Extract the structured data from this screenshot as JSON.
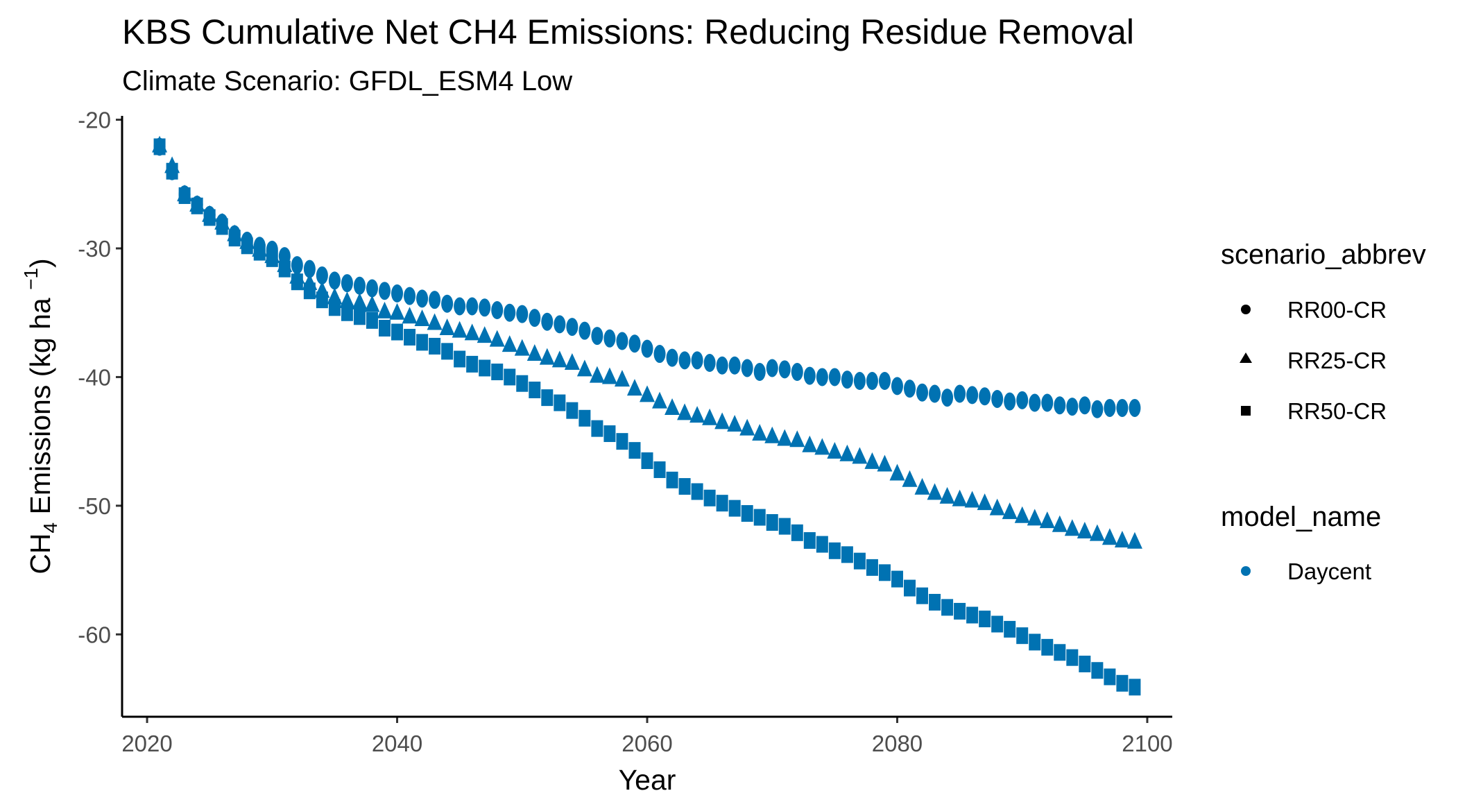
{
  "chart_data": {
    "type": "scatter",
    "title": "KBS  Cumulative Net CH4 Emissions: Reducing Residue Removal",
    "subtitle": "Climate Scenario: GFDL_ESM4 Low",
    "xlabel": "Year",
    "ylabel": {
      "prefix": "CH",
      "sub": "4",
      "middle": " Emissions (kg ha ",
      "sup": "−1",
      "suffix": ")"
    },
    "xlim": [
      2018,
      2102
    ],
    "ylim": [
      -66.4,
      -19.7
    ],
    "xticks": [
      2020,
      2040,
      2060,
      2080,
      2100
    ],
    "yticks": [
      -20,
      -30,
      -40,
      -50,
      -60
    ],
    "color": "#0072B2",
    "legend": {
      "placement": "right",
      "shape_title": "scenario_abbrev",
      "shape_items": [
        {
          "label": "RR00-CR",
          "shape": "circle"
        },
        {
          "label": "RR25-CR",
          "shape": "triangle"
        },
        {
          "label": "RR50-CR",
          "shape": "square"
        }
      ],
      "color_title": "model_name",
      "color_items": [
        {
          "label": "Daycent",
          "color": "#0072B2"
        }
      ]
    },
    "series": [
      {
        "name": "RR00-CR",
        "shape": "circle",
        "x": [
          2021,
          2022,
          2023,
          2024,
          2025,
          2026,
          2027,
          2028,
          2029,
          2030,
          2031,
          2032,
          2033,
          2034,
          2035,
          2036,
          2037,
          2038,
          2039,
          2040,
          2041,
          2042,
          2043,
          2044,
          2045,
          2046,
          2047,
          2048,
          2049,
          2050,
          2051,
          2052,
          2053,
          2054,
          2055,
          2056,
          2057,
          2058,
          2059,
          2060,
          2061,
          2062,
          2063,
          2064,
          2065,
          2066,
          2067,
          2068,
          2069,
          2070,
          2071,
          2072,
          2073,
          2074,
          2075,
          2076,
          2077,
          2078,
          2079,
          2080,
          2081,
          2082,
          2083,
          2084,
          2085,
          2086,
          2087,
          2088,
          2089,
          2090,
          2091,
          2092,
          2093,
          2094,
          2095,
          2096,
          2097,
          2098,
          2099
        ],
        "y": [
          -22.1,
          -24.0,
          -25.8,
          -26.6,
          -27.4,
          -28.0,
          -28.9,
          -29.4,
          -29.8,
          -30.1,
          -30.6,
          -31.3,
          -31.6,
          -32.1,
          -32.5,
          -32.7,
          -32.9,
          -33.1,
          -33.3,
          -33.5,
          -33.7,
          -33.9,
          -34.0,
          -34.3,
          -34.5,
          -34.5,
          -34.6,
          -34.8,
          -35.0,
          -35.1,
          -35.4,
          -35.7,
          -35.9,
          -36.1,
          -36.4,
          -36.8,
          -37.0,
          -37.2,
          -37.4,
          -37.8,
          -38.2,
          -38.5,
          -38.7,
          -38.7,
          -38.9,
          -39.1,
          -39.1,
          -39.3,
          -39.6,
          -39.3,
          -39.4,
          -39.6,
          -39.9,
          -40.0,
          -40.0,
          -40.2,
          -40.3,
          -40.3,
          -40.3,
          -40.7,
          -40.9,
          -41.2,
          -41.3,
          -41.6,
          -41.3,
          -41.4,
          -41.5,
          -41.7,
          -41.9,
          -41.8,
          -42.0,
          -42.0,
          -42.2,
          -42.3,
          -42.2,
          -42.5,
          -42.4,
          -42.4,
          -42.4
        ]
      },
      {
        "name": "RR25-CR",
        "shape": "triangle",
        "x": [
          2021,
          2022,
          2023,
          2024,
          2025,
          2026,
          2027,
          2028,
          2029,
          2030,
          2031,
          2032,
          2033,
          2034,
          2035,
          2036,
          2037,
          2038,
          2039,
          2040,
          2041,
          2042,
          2043,
          2044,
          2045,
          2046,
          2047,
          2048,
          2049,
          2050,
          2051,
          2052,
          2053,
          2054,
          2055,
          2056,
          2057,
          2058,
          2059,
          2060,
          2061,
          2062,
          2063,
          2064,
          2065,
          2066,
          2067,
          2068,
          2069,
          2070,
          2071,
          2072,
          2073,
          2074,
          2075,
          2076,
          2077,
          2078,
          2079,
          2080,
          2081,
          2082,
          2083,
          2084,
          2085,
          2086,
          2087,
          2088,
          2089,
          2090,
          2091,
          2092,
          2093,
          2094,
          2095,
          2096,
          2097,
          2098,
          2099
        ],
        "y": [
          -22.0,
          -23.6,
          -25.8,
          -26.6,
          -27.4,
          -28.0,
          -28.9,
          -29.5,
          -30.1,
          -30.6,
          -31.3,
          -32.2,
          -32.7,
          -33.3,
          -33.8,
          -34.1,
          -34.2,
          -34.4,
          -34.9,
          -35.0,
          -35.3,
          -35.5,
          -35.8,
          -36.2,
          -36.4,
          -36.6,
          -36.8,
          -37.1,
          -37.5,
          -37.8,
          -38.2,
          -38.5,
          -38.7,
          -38.9,
          -39.4,
          -39.9,
          -40.0,
          -40.2,
          -40.9,
          -41.4,
          -41.9,
          -42.4,
          -42.8,
          -43.0,
          -43.2,
          -43.5,
          -43.7,
          -44.0,
          -44.4,
          -44.6,
          -44.8,
          -44.9,
          -45.3,
          -45.5,
          -45.8,
          -46.0,
          -46.2,
          -46.6,
          -46.8,
          -47.5,
          -48.0,
          -48.6,
          -49.0,
          -49.3,
          -49.5,
          -49.6,
          -49.8,
          -50.2,
          -50.5,
          -50.8,
          -51.0,
          -51.2,
          -51.5,
          -51.8,
          -52.0,
          -52.2,
          -52.5,
          -52.7,
          -52.8
        ]
      },
      {
        "name": "RR50-CR",
        "shape": "square",
        "x": [
          2021,
          2022,
          2023,
          2024,
          2025,
          2026,
          2027,
          2028,
          2029,
          2030,
          2031,
          2032,
          2033,
          2034,
          2035,
          2036,
          2037,
          2038,
          2039,
          2040,
          2041,
          2042,
          2043,
          2044,
          2045,
          2046,
          2047,
          2048,
          2049,
          2050,
          2051,
          2052,
          2053,
          2054,
          2055,
          2056,
          2057,
          2058,
          2059,
          2060,
          2061,
          2062,
          2063,
          2064,
          2065,
          2066,
          2067,
          2068,
          2069,
          2070,
          2071,
          2072,
          2073,
          2074,
          2075,
          2076,
          2077,
          2078,
          2079,
          2080,
          2081,
          2082,
          2083,
          2084,
          2085,
          2086,
          2087,
          2088,
          2089,
          2090,
          2091,
          2092,
          2093,
          2094,
          2095,
          2096,
          2097,
          2098,
          2099
        ],
        "y": [
          -22.1,
          -24.0,
          -25.9,
          -26.7,
          -27.6,
          -28.3,
          -29.2,
          -29.8,
          -30.3,
          -30.8,
          -31.6,
          -32.6,
          -33.3,
          -34.0,
          -34.6,
          -35.0,
          -35.3,
          -35.6,
          -36.2,
          -36.5,
          -36.9,
          -37.3,
          -37.6,
          -38.0,
          -38.6,
          -39.0,
          -39.3,
          -39.6,
          -40.0,
          -40.5,
          -41.0,
          -41.6,
          -42.0,
          -42.6,
          -43.2,
          -44.0,
          -44.4,
          -45.0,
          -45.7,
          -46.5,
          -47.2,
          -48.0,
          -48.5,
          -48.9,
          -49.4,
          -49.8,
          -50.2,
          -50.6,
          -50.9,
          -51.3,
          -51.6,
          -52.1,
          -52.7,
          -53.0,
          -53.5,
          -53.8,
          -54.3,
          -54.8,
          -55.2,
          -55.7,
          -56.4,
          -57.0,
          -57.5,
          -57.9,
          -58.2,
          -58.5,
          -58.8,
          -59.2,
          -59.6,
          -60.1,
          -60.6,
          -61.0,
          -61.4,
          -61.8,
          -62.3,
          -62.8,
          -63.3,
          -63.8,
          -64.1
        ]
      }
    ]
  }
}
